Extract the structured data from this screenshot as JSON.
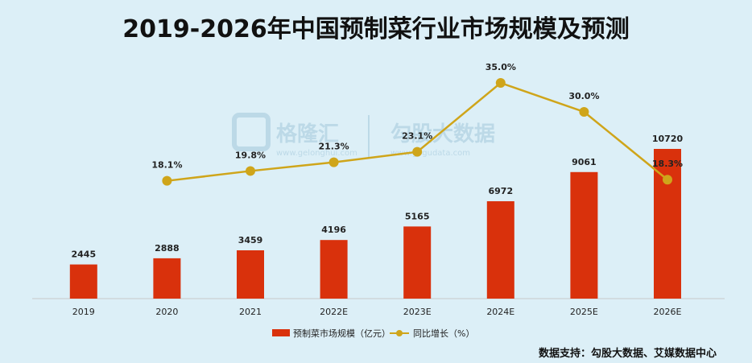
{
  "chart_data": {
    "type": "bar",
    "title": "2019-2026年中国预制菜行业市场规模及预测",
    "categories": [
      "2019",
      "2020",
      "2021",
      "2022E",
      "2023E",
      "2024E",
      "2025E",
      "2026E"
    ],
    "series": [
      {
        "name": "预制菜市场规模（亿元）",
        "type": "bar",
        "values": [
          2445,
          2888,
          3459,
          4196,
          5165,
          6972,
          9061,
          10720
        ],
        "labels": [
          "2445",
          "2888",
          "3459",
          "4196",
          "5165",
          "6972",
          "9061",
          "10720"
        ]
      },
      {
        "name": "同比增长（%）",
        "type": "line",
        "values": [
          null,
          18.1,
          19.8,
          21.3,
          23.1,
          35.0,
          30.0,
          18.3
        ],
        "labels": [
          "",
          "18.1%",
          "19.8%",
          "21.3%",
          "23.1%",
          "35.0%",
          "30.0%",
          "18.3%"
        ]
      }
    ],
    "xlabel": "",
    "ylabel": "",
    "grid": false,
    "legend_position": "bottom"
  },
  "watermarks": {
    "left_brand": "格隆汇",
    "left_url": "www.gelonghui.com",
    "right_brand": "勾股大数据",
    "right_url": "www.gogudata.com"
  },
  "source": "数据支持：勾股大数据、艾媒数据中心",
  "colors": {
    "background": "#dceff7",
    "bar": "#d9310c",
    "line": "#cfa51a",
    "axis": "#c8c8c8"
  }
}
